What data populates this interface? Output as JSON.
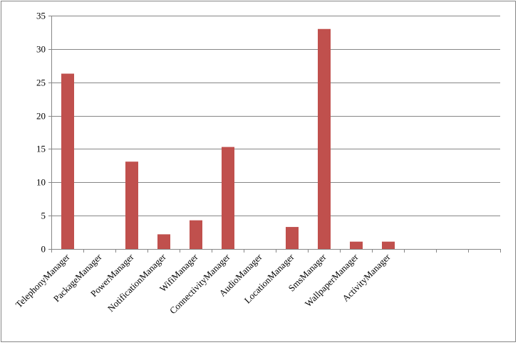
{
  "chart_data": {
    "type": "bar",
    "title": "",
    "xlabel": "",
    "ylabel": "",
    "categories": [
      "TelephonyManager",
      "PackageManager",
      "PowerManager",
      "NotificationManager",
      "WifiManager",
      "ConnectivityManager",
      "AudioManager",
      "LocationManager",
      "SmsManager",
      "WallpaperManager",
      "ActivityManager",
      "",
      "",
      ""
    ],
    "values": [
      26.3,
      0,
      13.1,
      2.2,
      4.3,
      15.3,
      0,
      3.3,
      33.0,
      1.1,
      1.1,
      null,
      null,
      null
    ],
    "ylim": [
      0,
      35
    ],
    "yticks": [
      "0",
      "5",
      "10",
      "15",
      "20",
      "25",
      "30",
      "35"
    ],
    "grid": true,
    "legend": "none",
    "bar_color": "#C0504D"
  }
}
